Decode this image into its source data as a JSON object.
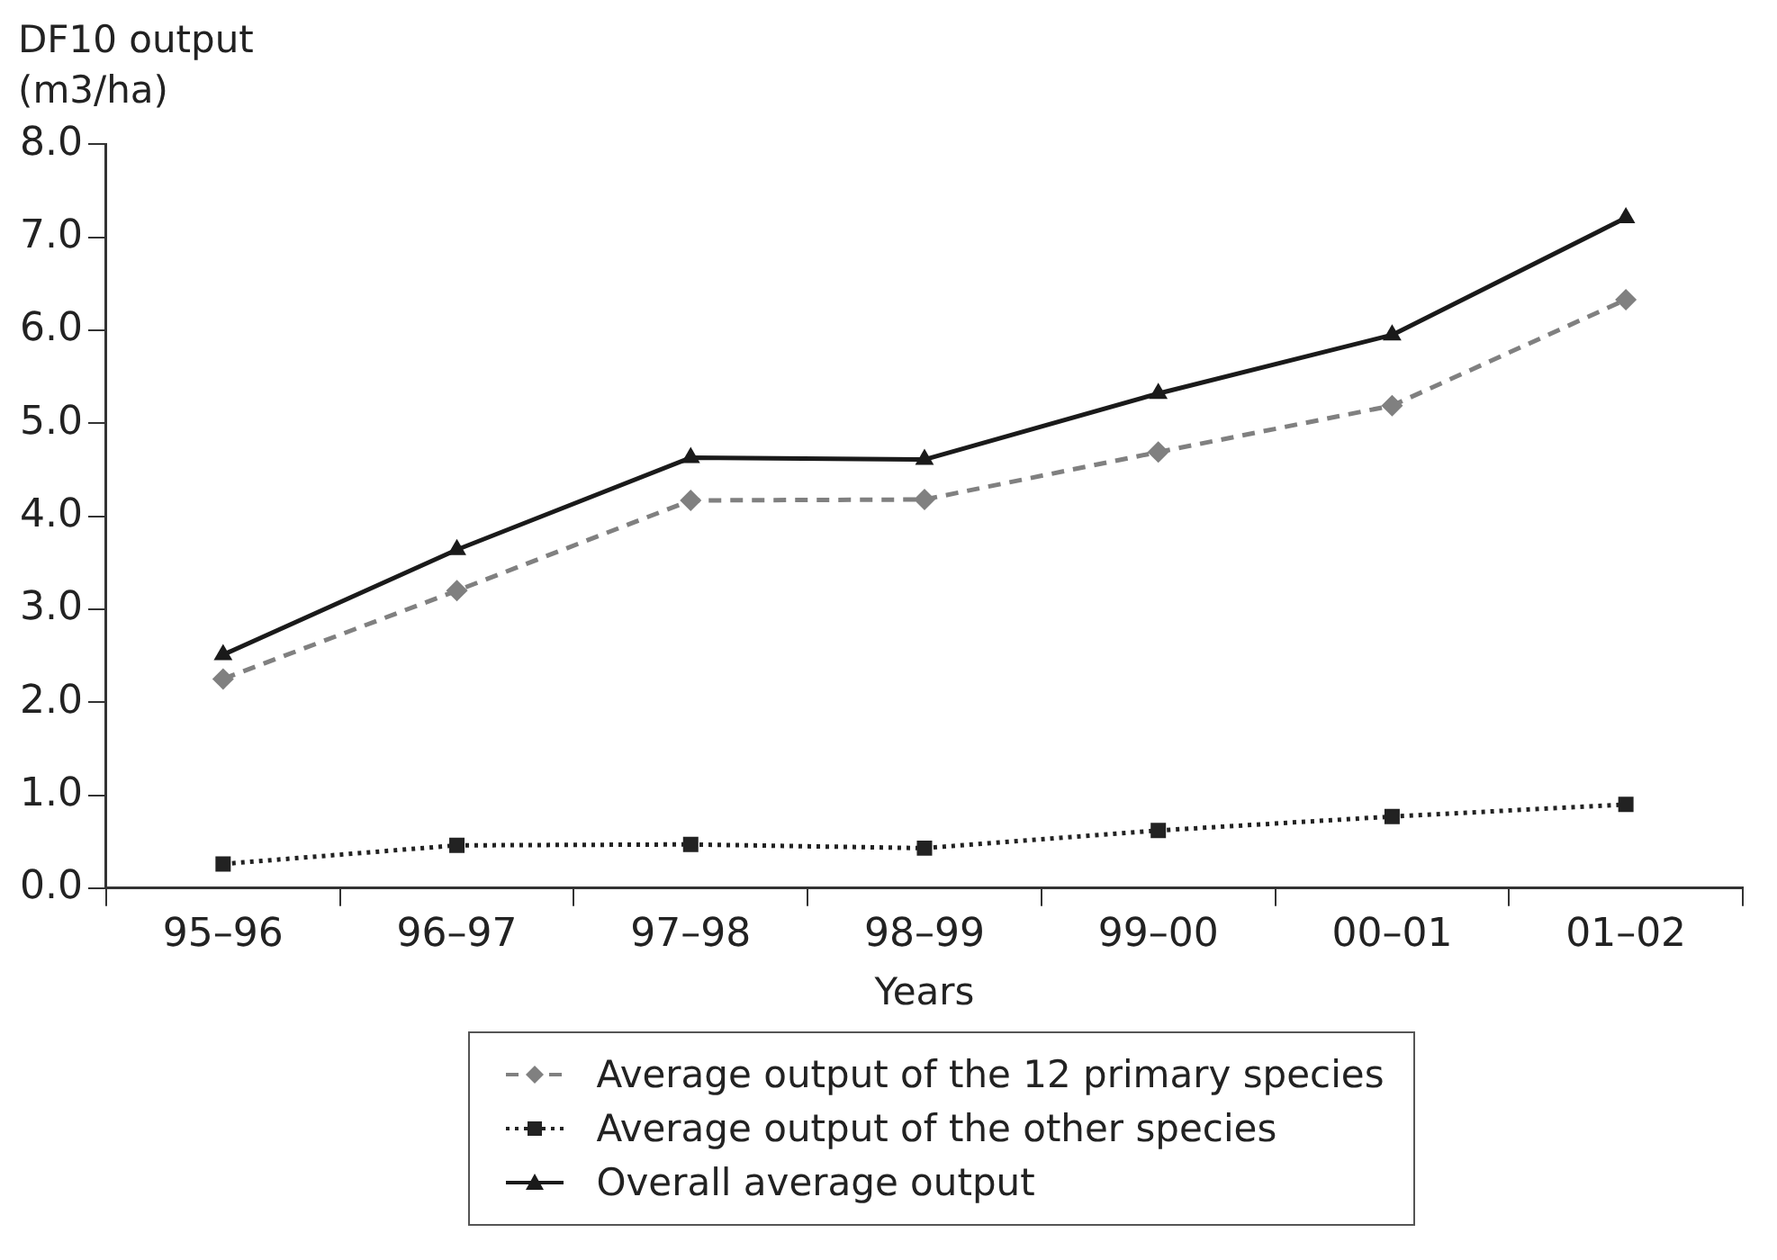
{
  "chart_data": {
    "type": "line",
    "ylabel": "DF10 output (m3/ha)",
    "xlabel": "Years",
    "categories": [
      "95–96",
      "96–97",
      "97–98",
      "98–99",
      "99–00",
      "00–01",
      "01–02"
    ],
    "series": [
      {
        "name": "Average output of the 12 primary species",
        "color": "#808080",
        "marker": "diamond",
        "line_style": "dashed",
        "values": [
          2.25,
          3.2,
          4.17,
          4.18,
          4.69,
          5.19,
          6.33
        ]
      },
      {
        "name": "Average output of the other species",
        "color": "#222222",
        "marker": "square",
        "line_style": "dotted",
        "values": [
          0.26,
          0.46,
          0.47,
          0.43,
          0.62,
          0.77,
          0.9
        ]
      },
      {
        "name": "Overall average output",
        "color": "#1a1a1a",
        "marker": "triangle",
        "line_style": "solid",
        "values": [
          2.51,
          3.64,
          4.63,
          4.61,
          5.32,
          5.95,
          7.21
        ]
      }
    ],
    "ylim": [
      0,
      8
    ],
    "yticks": [
      {
        "value": 0,
        "label": "0.0"
      },
      {
        "value": 1,
        "label": "1.0"
      },
      {
        "value": 2,
        "label": "2.0"
      },
      {
        "value": 3,
        "label": "3.0"
      },
      {
        "value": 4,
        "label": "4.0"
      },
      {
        "value": 5,
        "label": "5.0"
      },
      {
        "value": 6,
        "label": "6.0"
      },
      {
        "value": 7,
        "label": "7.0"
      },
      {
        "value": 8,
        "label": "8.0"
      }
    ],
    "grid": false,
    "legend": "bottom"
  }
}
